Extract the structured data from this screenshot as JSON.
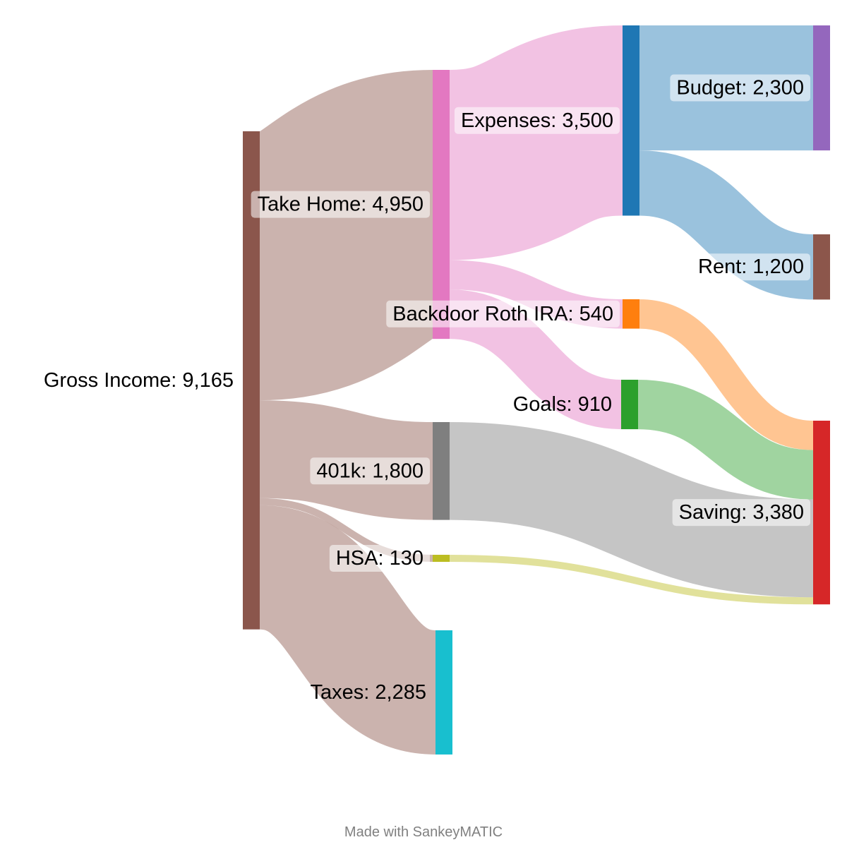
{
  "chart_data": {
    "type": "sankey",
    "nodes": [
      {
        "id": "gross",
        "name": "Gross Income",
        "value": "9,165",
        "color": "#8b564c"
      },
      {
        "id": "take",
        "name": "Take Home",
        "value": "4,950",
        "color": "#e378c1"
      },
      {
        "id": "k401",
        "name": "401k",
        "value": "1,800",
        "color": "#7f7f7f"
      },
      {
        "id": "hsa",
        "name": "HSA",
        "value": "130",
        "color": "#bcbd22"
      },
      {
        "id": "taxes",
        "name": "Taxes",
        "value": "2,285",
        "color": "#18bfcf"
      },
      {
        "id": "expenses",
        "name": "Expenses",
        "value": "3,500",
        "color": "#1f77b4"
      },
      {
        "id": "roth",
        "name": "Backdoor Roth IRA",
        "value": "540",
        "color": "#ff7f0e"
      },
      {
        "id": "goals",
        "name": "Goals",
        "value": "910",
        "color": "#2ca02c"
      },
      {
        "id": "budget",
        "name": "Budget",
        "value": "2,300",
        "color": "#9467bd"
      },
      {
        "id": "rent",
        "name": "Rent",
        "value": "1,200",
        "color": "#8c564b"
      },
      {
        "id": "saving",
        "name": "Saving",
        "value": "3,380",
        "color": "#d62728"
      }
    ],
    "links": [
      {
        "source": "gross",
        "target": "take",
        "value": 4950
      },
      {
        "source": "gross",
        "target": "k401",
        "value": 1800
      },
      {
        "source": "gross",
        "target": "hsa",
        "value": 130
      },
      {
        "source": "gross",
        "target": "taxes",
        "value": 2285
      },
      {
        "source": "take",
        "target": "expenses",
        "value": 3500
      },
      {
        "source": "take",
        "target": "roth",
        "value": 540
      },
      {
        "source": "take",
        "target": "goals",
        "value": 910
      },
      {
        "source": "expenses",
        "target": "budget",
        "value": 2300
      },
      {
        "source": "expenses",
        "target": "rent",
        "value": 1200
      },
      {
        "source": "roth",
        "target": "saving",
        "value": 540
      },
      {
        "source": "goals",
        "target": "saving",
        "value": 910
      },
      {
        "source": "k401",
        "target": "saving",
        "value": 1800
      },
      {
        "source": "hsa",
        "target": "saving",
        "value": 130
      }
    ]
  },
  "footer": "Made with SankeyMATIC"
}
